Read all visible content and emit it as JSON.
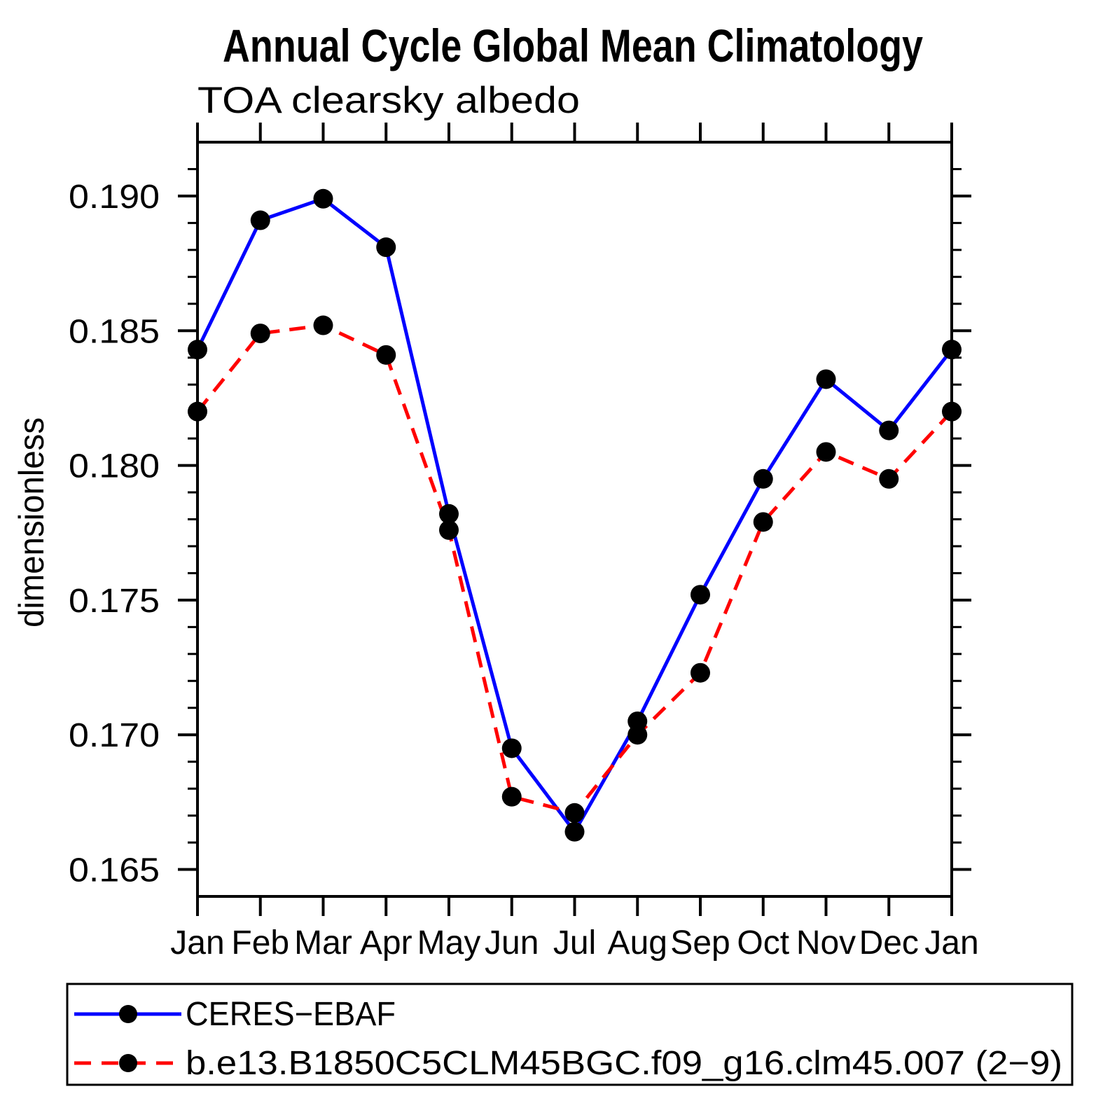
{
  "header": {
    "title": "Annual Cycle Global Mean Climatology"
  },
  "chart_data": {
    "type": "line",
    "title": "TOA clearsky albedo",
    "ylabel": "dimensionless",
    "xlabel": "",
    "categories": [
      "Jan",
      "Feb",
      "Mar",
      "Apr",
      "May",
      "Jun",
      "Jul",
      "Aug",
      "Sep",
      "Oct",
      "Nov",
      "Dec",
      "Jan"
    ],
    "series": [
      {
        "name": "CERES−EBAF",
        "color": "#0000ff",
        "line_style": "solid",
        "marker": "filled-circle",
        "marker_color": "#000000",
        "values": [
          0.1843,
          0.1891,
          0.1899,
          0.1881,
          0.1782,
          0.1695,
          0.1664,
          0.1705,
          0.1752,
          0.1795,
          0.1832,
          0.1813,
          0.1843
        ]
      },
      {
        "name": "b.e13.B1850C5CLM45BGC.f09_g16.clm45.007 (2−9)",
        "color": "#ff0000",
        "line_style": "dashed",
        "marker": "filled-circle",
        "marker_color": "#000000",
        "values": [
          0.182,
          0.1849,
          0.1852,
          0.1841,
          0.1776,
          0.1677,
          0.1671,
          0.17,
          0.1723,
          0.1779,
          0.1805,
          0.1795,
          0.182
        ]
      }
    ],
    "ylim": [
      0.164,
      0.192
    ],
    "ytick_major": [
      0.165,
      0.17,
      0.175,
      0.18,
      0.185,
      0.19
    ],
    "ytick_labels": [
      "0.165",
      "0.170",
      "0.175",
      "0.180",
      "0.185",
      "0.190"
    ],
    "ytick_minor_step": 0.001,
    "grid": false,
    "legend_position": "bottom-left-box"
  },
  "colors": {
    "frame": "#000000",
    "background": "#ffffff",
    "marker": "#000000",
    "series1": "#0000ff",
    "series2": "#ff0000"
  }
}
